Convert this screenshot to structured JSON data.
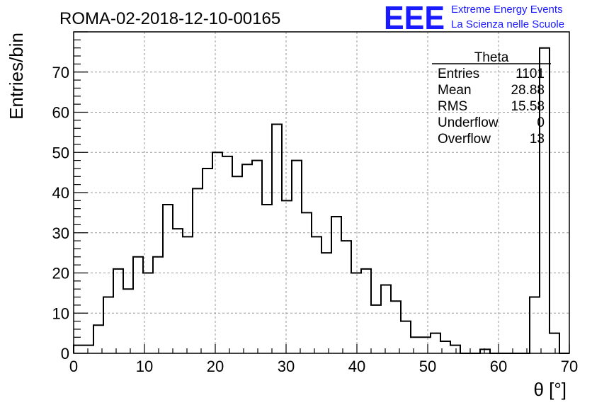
{
  "logo": {
    "mark": "EEE",
    "line1": "Extreme Energy Events",
    "line2": "La Scienza nelle Scuole",
    "color": "#1a1aff"
  },
  "chart_data": {
    "type": "bar",
    "title": "ROMA-02-2018-12-10-00165",
    "xlabel": "θ [°]",
    "ylabel": "Entries/bin",
    "xlim": [
      0,
      70
    ],
    "ylim": [
      0,
      80
    ],
    "bin_width": 1.4,
    "x_ticks": [
      0,
      10,
      20,
      30,
      40,
      50,
      60,
      70
    ],
    "y_ticks": [
      0,
      10,
      20,
      30,
      40,
      50,
      60,
      70
    ],
    "grid": true,
    "values": [
      2,
      2,
      7,
      14,
      21,
      16,
      24,
      20,
      24,
      37,
      31,
      29,
      41,
      46,
      50,
      49,
      44,
      47,
      48,
      37,
      57,
      38,
      48,
      35,
      29,
      25,
      34,
      28,
      20,
      21,
      12,
      17,
      13,
      8,
      4,
      4,
      5,
      3,
      2,
      0,
      0,
      1,
      0,
      0,
      0,
      0,
      14,
      76,
      5,
      0
    ],
    "stats_box": {
      "name": "Theta",
      "rows": [
        {
          "label": "Entries",
          "value": "1101"
        },
        {
          "label": "Mean",
          "value": "28.88"
        },
        {
          "label": "RMS",
          "value": "15.58"
        },
        {
          "label": "Underflow",
          "value": "0"
        },
        {
          "label": "Overflow",
          "value": "13"
        }
      ]
    },
    "colors": {
      "line": "#000000",
      "grid": "#999999"
    }
  }
}
